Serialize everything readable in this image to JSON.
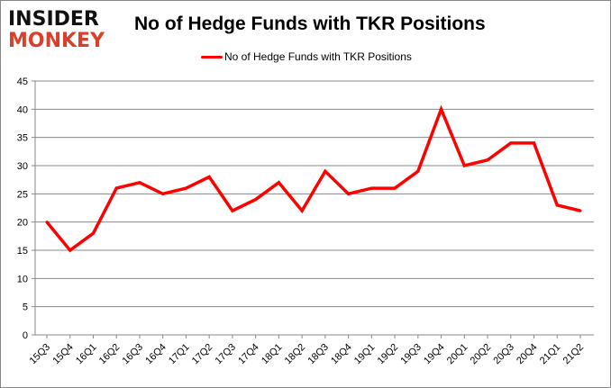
{
  "logo": {
    "line1": "INSIDER",
    "line2": "MONKEY"
  },
  "chart_data": {
    "type": "line",
    "title": "No of Hedge Funds with TKR Positions",
    "categories": [
      "15Q3",
      "15Q4",
      "16Q1",
      "16Q2",
      "16Q3",
      "16Q4",
      "17Q1",
      "17Q2",
      "17Q3",
      "17Q4",
      "18Q1",
      "18Q2",
      "18Q3",
      "18Q4",
      "19Q1",
      "19Q2",
      "19Q3",
      "19Q4",
      "20Q1",
      "20Q2",
      "20Q3",
      "20Q4",
      "21Q1",
      "21Q2"
    ],
    "series": [
      {
        "name": "No of Hedge Funds with TKR Positions",
        "color": "#ff0000",
        "values": [
          20,
          15,
          18,
          26,
          27,
          25,
          26,
          28,
          22,
          24,
          27,
          22,
          29,
          25,
          26,
          26,
          29,
          40,
          30,
          31,
          34,
          34,
          23,
          22
        ]
      }
    ],
    "ylim": [
      0,
      45
    ],
    "yticks": [
      0,
      5,
      10,
      15,
      20,
      25,
      30,
      35,
      40,
      45
    ],
    "xlabel": "",
    "ylabel": "",
    "grid": true,
    "legend": "top-center"
  }
}
